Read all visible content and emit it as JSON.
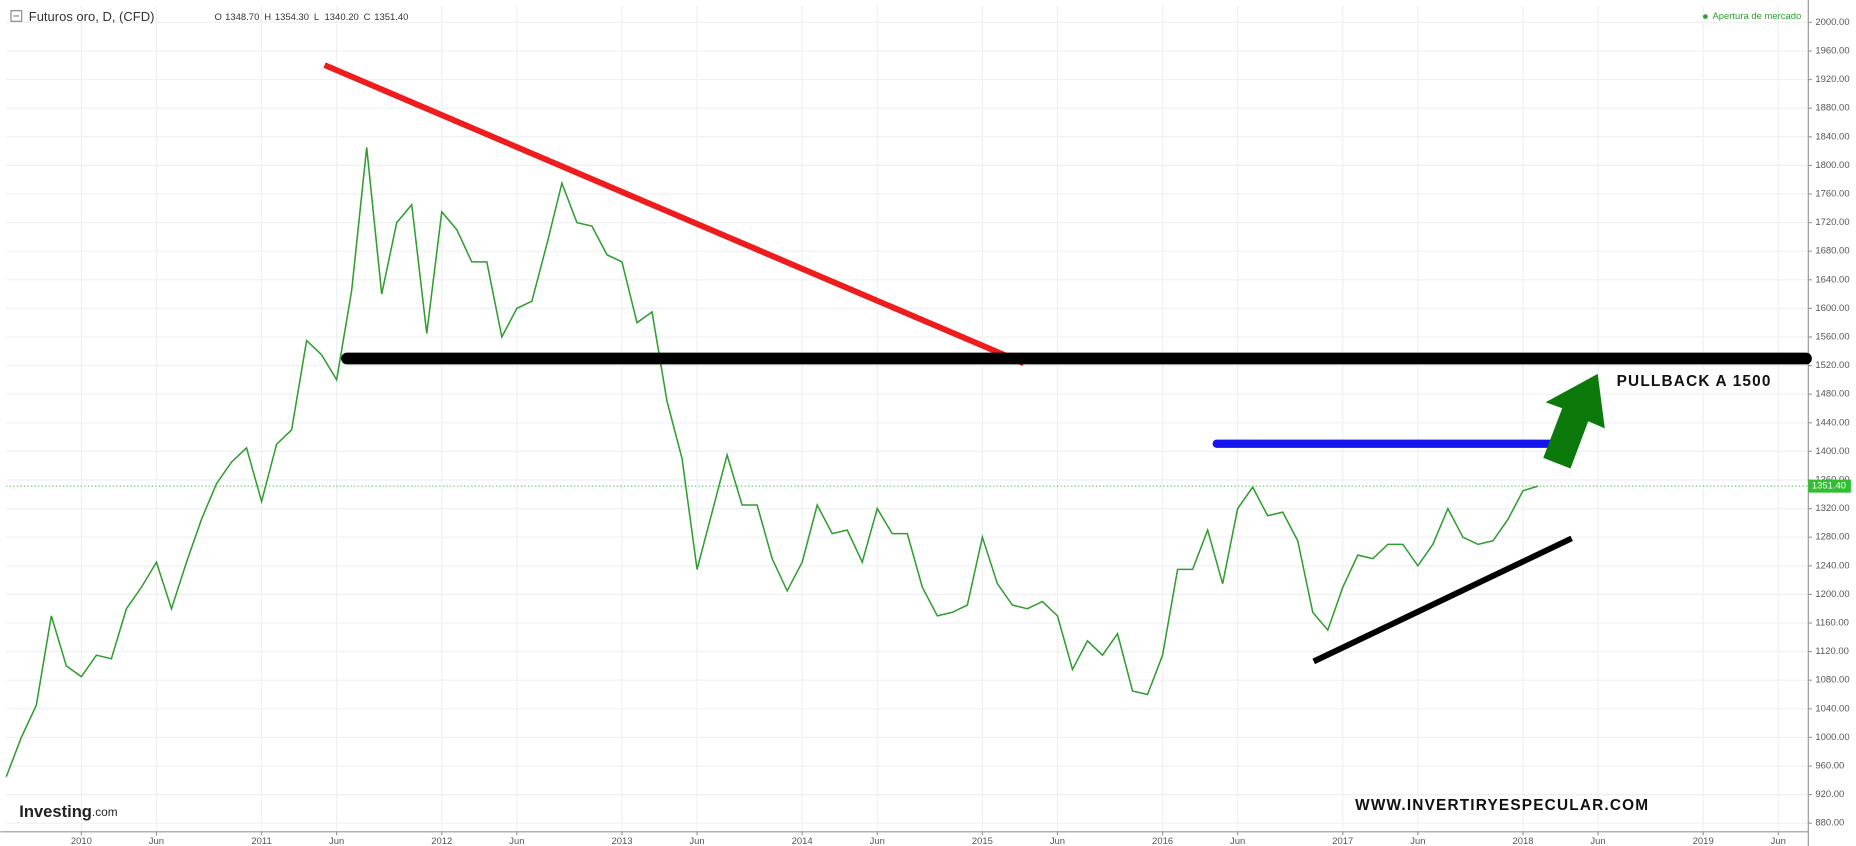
{
  "header": {
    "symbol": "Futuros oro, D, (CFD)",
    "ohlc": [
      {
        "key": "O",
        "value": "1348.70"
      },
      {
        "key": "H",
        "value": "1354.30"
      },
      {
        "key": "L",
        "value": "1340.20"
      },
      {
        "key": "C",
        "value": "1351.40"
      }
    ],
    "status": "Apertura de mercado",
    "logo": "Investing",
    "logo_suffix": ".com"
  },
  "chart_data": {
    "type": "line",
    "annotations": [
      "PULLBACK A 1500",
      "WWW.INVERTIRYESPECULAR.COM"
    ],
    "last_price": {
      "value": 1351.4,
      "label": "1351.40"
    },
    "x": [
      "2009-08",
      "2009-09",
      "2009-10",
      "2009-11",
      "2009-12",
      "2010-01",
      "2010-02",
      "2010-03",
      "2010-04",
      "2010-05",
      "2010-06",
      "2010-07",
      "2010-08",
      "2010-09",
      "2010-10",
      "2010-11",
      "2010-12",
      "2011-01",
      "2011-02",
      "2011-03",
      "2011-04",
      "2011-05",
      "2011-06",
      "2011-07",
      "2011-08",
      "2011-09",
      "2011-10",
      "2011-11",
      "2011-12",
      "2012-01",
      "2012-02",
      "2012-03",
      "2012-04",
      "2012-05",
      "2012-06",
      "2012-07",
      "2012-08",
      "2012-09",
      "2012-10",
      "2012-11",
      "2012-12",
      "2013-01",
      "2013-02",
      "2013-03",
      "2013-04",
      "2013-05",
      "2013-06",
      "2013-07",
      "2013-08",
      "2013-09",
      "2013-10",
      "2013-11",
      "2013-12",
      "2014-01",
      "2014-02",
      "2014-03",
      "2014-04",
      "2014-05",
      "2014-06",
      "2014-07",
      "2014-08",
      "2014-09",
      "2014-10",
      "2014-11",
      "2014-12",
      "2015-01",
      "2015-02",
      "2015-03",
      "2015-04",
      "2015-05",
      "2015-06",
      "2015-07",
      "2015-08",
      "2015-09",
      "2015-10",
      "2015-11",
      "2015-12",
      "2016-01",
      "2016-02",
      "2016-03",
      "2016-04",
      "2016-05",
      "2016-06",
      "2016-07",
      "2016-08",
      "2016-09",
      "2016-10",
      "2016-11",
      "2016-12",
      "2017-01",
      "2017-02",
      "2017-03",
      "2017-04",
      "2017-05",
      "2017-06",
      "2017-07",
      "2017-08",
      "2017-09",
      "2017-10",
      "2017-11",
      "2017-12",
      "2018-01",
      "2018-02"
    ],
    "series": [
      {
        "color": "#2f9e2f",
        "values": [
          945,
          1000,
          1045,
          1170,
          1100,
          1085,
          1115,
          1110,
          1180,
          1210,
          1245,
          1180,
          1245,
          1305,
          1355,
          1385,
          1405,
          1330,
          1410,
          1430,
          1555,
          1535,
          1500,
          1625,
          1825,
          1620,
          1720,
          1745,
          1565,
          1735,
          1710,
          1665,
          1665,
          1560,
          1600,
          1610,
          1690,
          1775,
          1720,
          1715,
          1675,
          1665,
          1580,
          1595,
          1470,
          1390,
          1235,
          1315,
          1395,
          1325,
          1325,
          1250,
          1205,
          1245,
          1325,
          1285,
          1290,
          1245,
          1320,
          1285,
          1285,
          1210,
          1170,
          1175,
          1185,
          1280,
          1215,
          1185,
          1180,
          1190,
          1170,
          1095,
          1135,
          1115,
          1145,
          1065,
          1060,
          1115,
          1235,
          1235,
          1290,
          1215,
          1320,
          1350,
          1310,
          1315,
          1275,
          1175,
          1150,
          1210,
          1255,
          1250,
          1270,
          1270,
          1240,
          1270,
          1320,
          1280,
          1270,
          1275,
          1305,
          1345,
          1351.4
        ]
      }
    ],
    "xlim": [
      "2009-08",
      "2019-08"
    ],
    "xticks": [
      {
        "value": "2010-01",
        "label": "2010"
      },
      {
        "value": "2010-06",
        "label": "Jun"
      },
      {
        "value": "2011-01",
        "label": "2011"
      },
      {
        "value": "2011-06",
        "label": "Jun"
      },
      {
        "value": "2012-01",
        "label": "2012"
      },
      {
        "value": "2012-06",
        "label": "Jun"
      },
      {
        "value": "2013-01",
        "label": "2013"
      },
      {
        "value": "2013-06",
        "label": "Jun"
      },
      {
        "value": "2014-01",
        "label": "2014"
      },
      {
        "value": "2014-06",
        "label": "Jun"
      },
      {
        "value": "2015-01",
        "label": "2015"
      },
      {
        "value": "2015-06",
        "label": "Jun"
      },
      {
        "value": "2016-01",
        "label": "2016"
      },
      {
        "value": "2016-06",
        "label": "Jun"
      },
      {
        "value": "2017-01",
        "label": "2017"
      },
      {
        "value": "2017-06",
        "label": "Jun"
      },
      {
        "value": "2018-01",
        "label": "2018"
      },
      {
        "value": "2018-06",
        "label": "Jun"
      },
      {
        "value": "2019-01",
        "label": "2019"
      },
      {
        "value": "2019-06",
        "label": "Jun"
      }
    ],
    "ylim": [
      868,
      2023
    ],
    "yticks": [
      {
        "value": 880,
        "label": "880.00"
      },
      {
        "value": 920,
        "label": "920.00"
      },
      {
        "value": 960,
        "label": "960.00"
      },
      {
        "value": 1000,
        "label": "1000.00"
      },
      {
        "value": 1040,
        "label": "1040.00"
      },
      {
        "value": 1080,
        "label": "1080.00"
      },
      {
        "value": 1120,
        "label": "1120.00"
      },
      {
        "value": 1160,
        "label": "1160.00"
      },
      {
        "value": 1200,
        "label": "1200.00"
      },
      {
        "value": 1240,
        "label": "1240.00"
      },
      {
        "value": 1280,
        "label": "1280.00"
      },
      {
        "value": 1320,
        "label": "1320.00"
      },
      {
        "value": 1360,
        "label": "1360.00"
      },
      {
        "value": 1400,
        "label": "1400.00"
      },
      {
        "value": 1440,
        "label": "1440.00"
      },
      {
        "value": 1480,
        "label": "1480.00"
      },
      {
        "value": 1520,
        "label": "1520.00"
      },
      {
        "value": 1560,
        "label": "1560.00"
      },
      {
        "value": 1600,
        "label": "1600.00"
      },
      {
        "value": 1640,
        "label": "1640.00"
      },
      {
        "value": 1680,
        "label": "1680.00"
      },
      {
        "value": 1720,
        "label": "1720.00"
      },
      {
        "value": 1760,
        "label": "1760.00"
      },
      {
        "value": 1800,
        "label": "1800.00"
      },
      {
        "value": 1840,
        "label": "1840.00"
      },
      {
        "value": 1880,
        "label": "1880.00"
      },
      {
        "value": 1920,
        "label": "1920.00"
      },
      {
        "value": 1960,
        "label": "1960.00"
      },
      {
        "value": 2000,
        "label": "2000.00"
      }
    ],
    "grid": true
  }
}
